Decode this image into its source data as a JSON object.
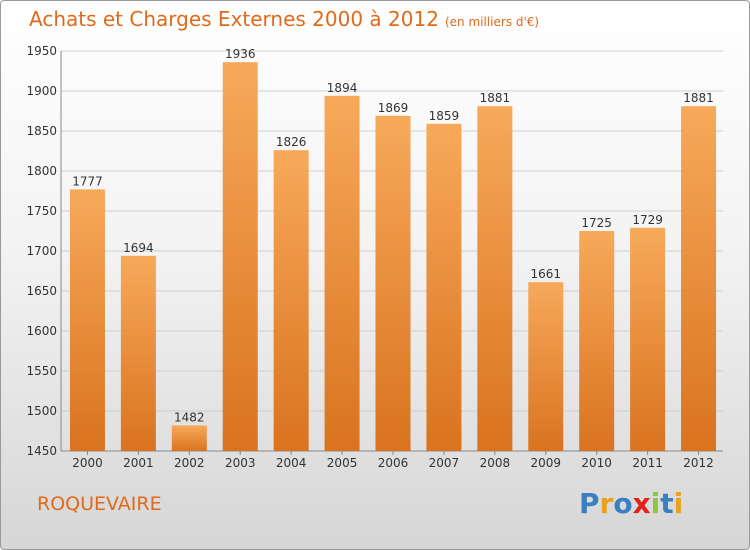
{
  "header": {
    "title": "Achats et Charges Externes 2000 à 2012",
    "unit": "(en milliers d'€)"
  },
  "footer": {
    "commune": "ROQUEVAIRE",
    "logo_text": "Proxiti",
    "logo_colors": [
      "#3a7fc1",
      "#e8a21e",
      "#3a7fc1",
      "#e2231a",
      "#8dc63f",
      "#3a7fc1",
      "#e8a21e"
    ]
  },
  "colors": {
    "bar_light": "#f7a95a",
    "bar_dark": "#d9731f",
    "accent": "#e06a1a",
    "grid": "#cfcfcf"
  },
  "chart_data": {
    "type": "bar",
    "title": "Achats et Charges Externes 2000 à 2012",
    "xlabel": "",
    "ylabel": "",
    "categories": [
      "2000",
      "2001",
      "2002",
      "2003",
      "2004",
      "2005",
      "2006",
      "2007",
      "2008",
      "2009",
      "2010",
      "2011",
      "2012"
    ],
    "values": [
      1777,
      1694,
      1482,
      1936,
      1826,
      1894,
      1869,
      1859,
      1881,
      1661,
      1725,
      1729,
      1881
    ],
    "ylim": [
      1450,
      1950
    ],
    "yticks": [
      1450,
      1500,
      1550,
      1600,
      1650,
      1700,
      1750,
      1800,
      1850,
      1900,
      1950
    ],
    "grid": true,
    "legend": "none"
  }
}
